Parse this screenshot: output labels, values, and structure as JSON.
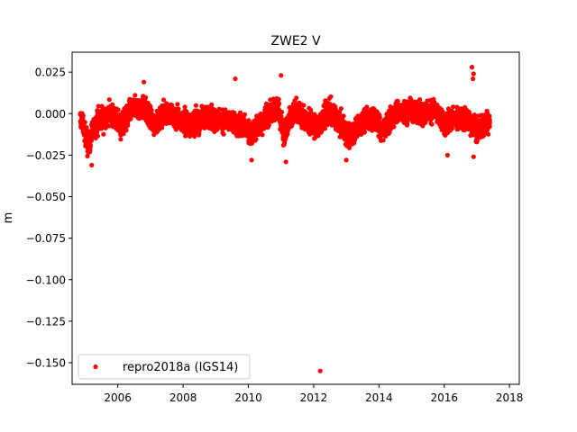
{
  "chart_data": {
    "type": "scatter",
    "title": "ZWE2 V",
    "xlabel": "",
    "ylabel": "m",
    "xlim": [
      2004.6,
      2018.3
    ],
    "ylim": [
      -0.163,
      0.037
    ],
    "x_ticks": [
      2006,
      2008,
      2010,
      2012,
      2014,
      2016,
      2018
    ],
    "x_tick_labels": [
      "2006",
      "2008",
      "2010",
      "2012",
      "2014",
      "2016",
      "2018"
    ],
    "y_ticks": [
      0.025,
      0.0,
      -0.025,
      -0.05,
      -0.075,
      -0.1,
      -0.125,
      -0.15
    ],
    "y_tick_labels": [
      "0.025",
      "0.000",
      "−0.025",
      "−0.050",
      "−0.075",
      "−0.100",
      "−0.125",
      "−0.150"
    ],
    "grid": false,
    "legend_position": "lower-left",
    "series": [
      {
        "name": "repro2018a (IGS14)",
        "color": "#ff0000",
        "marker": "circle",
        "time_span": [
          2004.85,
          2017.4
        ],
        "y_range_typical": [
          -0.031,
          0.028
        ],
        "profile": [
          {
            "x": 2004.9,
            "y": -0.004
          },
          {
            "x": 2005.1,
            "y": -0.02
          },
          {
            "x": 2005.2,
            "y": -0.012
          },
          {
            "x": 2005.4,
            "y": -0.004
          },
          {
            "x": 2005.8,
            "y": 0.0
          },
          {
            "x": 2006.1,
            "y": -0.008
          },
          {
            "x": 2006.4,
            "y": 0.002
          },
          {
            "x": 2006.8,
            "y": 0.004
          },
          {
            "x": 2007.1,
            "y": -0.006
          },
          {
            "x": 2007.5,
            "y": 0.001
          },
          {
            "x": 2007.9,
            "y": -0.004
          },
          {
            "x": 2008.3,
            "y": -0.006
          },
          {
            "x": 2008.7,
            "y": -0.002
          },
          {
            "x": 2009.1,
            "y": -0.004
          },
          {
            "x": 2009.5,
            "y": -0.005
          },
          {
            "x": 2009.9,
            "y": -0.008
          },
          {
            "x": 2010.1,
            "y": -0.012
          },
          {
            "x": 2010.5,
            "y": -0.002
          },
          {
            "x": 2010.9,
            "y": 0.004
          },
          {
            "x": 2011.1,
            "y": -0.012
          },
          {
            "x": 2011.4,
            "y": 0.002
          },
          {
            "x": 2011.8,
            "y": -0.004
          },
          {
            "x": 2012.1,
            "y": -0.008
          },
          {
            "x": 2012.5,
            "y": 0.002
          },
          {
            "x": 2012.8,
            "y": -0.006
          },
          {
            "x": 2013.1,
            "y": -0.014
          },
          {
            "x": 2013.5,
            "y": -0.004
          },
          {
            "x": 2013.9,
            "y": -0.003
          },
          {
            "x": 2014.1,
            "y": -0.01
          },
          {
            "x": 2014.5,
            "y": 0.0
          },
          {
            "x": 2014.9,
            "y": 0.002
          },
          {
            "x": 2015.3,
            "y": 0.0
          },
          {
            "x": 2015.7,
            "y": 0.002
          },
          {
            "x": 2016.0,
            "y": -0.006
          },
          {
            "x": 2016.4,
            "y": -0.002
          },
          {
            "x": 2016.8,
            "y": -0.004
          },
          {
            "x": 2017.0,
            "y": -0.01
          },
          {
            "x": 2017.4,
            "y": -0.004
          }
        ],
        "spikes": [
          {
            "x": 2016.85,
            "y": 0.028
          },
          {
            "x": 2016.9,
            "y": 0.024
          },
          {
            "x": 2016.88,
            "y": 0.021
          },
          {
            "x": 2011.0,
            "y": 0.023
          },
          {
            "x": 2009.6,
            "y": 0.021
          },
          {
            "x": 2006.8,
            "y": 0.019
          },
          {
            "x": 2005.2,
            "y": -0.031
          },
          {
            "x": 2010.1,
            "y": -0.028
          },
          {
            "x": 2011.15,
            "y": -0.029
          },
          {
            "x": 2013.0,
            "y": -0.028
          },
          {
            "x": 2016.1,
            "y": -0.025
          },
          {
            "x": 2016.9,
            "y": -0.026
          }
        ],
        "outliers": [
          {
            "x": 2012.2,
            "y": -0.155
          }
        ]
      }
    ]
  }
}
